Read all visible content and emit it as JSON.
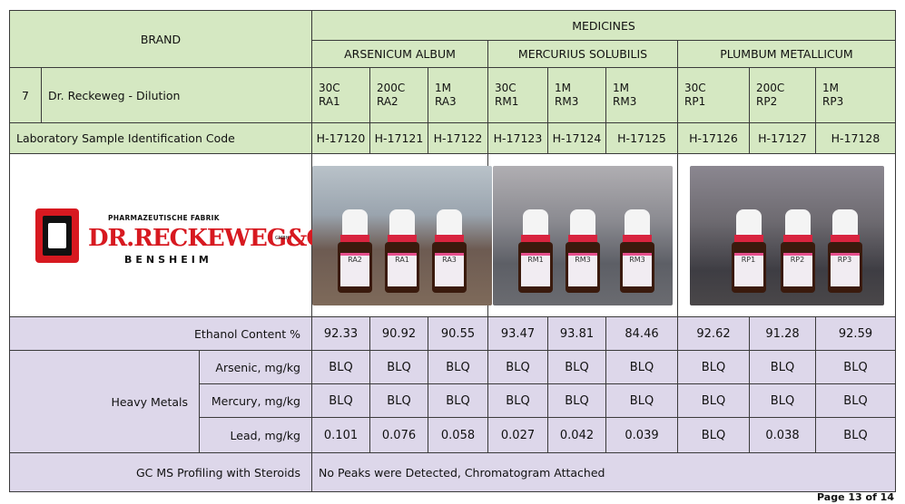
{
  "header": {
    "brand": "BRAND",
    "medicines": "MEDICINES",
    "groups": [
      "ARSENICUM ALBUM",
      "MERCURIUS SOLUBILIS",
      "PLUMBUM METALLICUM"
    ]
  },
  "row7": {
    "no": "7",
    "brand_name": "Dr. Reckeweg - Dilution",
    "potencies": [
      {
        "p": "30C",
        "c": "RA1"
      },
      {
        "p": "200C",
        "c": "RA2"
      },
      {
        "p": "1M",
        "c": "RA3"
      },
      {
        "p": "30C",
        "c": "RM1"
      },
      {
        "p": "1M",
        "c": "RM3"
      },
      {
        "p": "1M",
        "c": "RM3"
      },
      {
        "p": "30C",
        "c": "RP1"
      },
      {
        "p": "200C",
        "c": "RP2"
      },
      {
        "p": "1M",
        "c": "RP3"
      }
    ]
  },
  "lab": {
    "label": "Laboratory Sample Identification Code",
    "codes": [
      "H-17120",
      "H-17121",
      "H-17122",
      "H-17123",
      "H-17124",
      "H-17125",
      "H-17126",
      "H-17127",
      "H-17128"
    ]
  },
  "logo": {
    "line1": "PHARMAZEUTISCHE FABRIK",
    "line2": "DR.RECKEWEG&CO",
    "line3": "BENSHEIM",
    "gmbh": "GMBH"
  },
  "photos": [
    {
      "labels": [
        "RA2",
        "RA1",
        "RA3"
      ]
    },
    {
      "labels": [
        "RM1",
        "RM3",
        "RM3"
      ]
    },
    {
      "labels": [
        "RP1",
        "RP2",
        "RP3"
      ]
    }
  ],
  "ethanol": {
    "label": "Ethanol Content %",
    "values": [
      "92.33",
      "90.92",
      "90.55",
      "93.47",
      "93.81",
      "84.46",
      "92.62",
      "91.28",
      "92.59"
    ]
  },
  "heavy": {
    "label": "Heavy Metals",
    "rows": [
      {
        "label": "Arsenic, mg/kg",
        "values": [
          "BLQ",
          "BLQ",
          "BLQ",
          "BLQ",
          "BLQ",
          "BLQ",
          "BLQ",
          "BLQ",
          "BLQ"
        ]
      },
      {
        "label": "Mercury, mg/kg",
        "values": [
          "BLQ",
          "BLQ",
          "BLQ",
          "BLQ",
          "BLQ",
          "BLQ",
          "BLQ",
          "BLQ",
          "BLQ"
        ]
      },
      {
        "label": "Lead, mg/kg",
        "values": [
          "0.101",
          "0.076",
          "0.058",
          "0.027",
          "0.042",
          "0.039",
          "BLQ",
          "0.038",
          "BLQ"
        ]
      }
    ]
  },
  "gcms": {
    "label": "GC MS Profiling with Steroids",
    "value": "No Peaks were Detected, Chromatogram Attached"
  },
  "footer": {
    "page": "Page 13 of 14"
  }
}
